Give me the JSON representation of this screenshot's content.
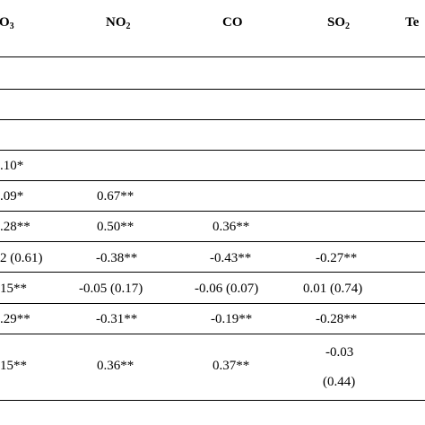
{
  "headers": {
    "o3": {
      "base": "O",
      "sub": "3"
    },
    "no2": {
      "base": "NO",
      "sub": "2"
    },
    "co": {
      "base": "CO"
    },
    "so2": {
      "base": "SO",
      "sub": "2"
    },
    "te": {
      "base": "Te"
    }
  },
  "rows": [
    {
      "o3": "",
      "no2": "",
      "co": "",
      "so2": ""
    },
    {
      "o3": "",
      "no2": "",
      "co": "",
      "so2": ""
    },
    {
      "o3": "",
      "no2": "",
      "co": "",
      "so2": ""
    },
    {
      "o3": ".10*",
      "no2": "",
      "co": "",
      "so2": ""
    },
    {
      "o3": ".09*",
      "no2": "0.67**",
      "co": "",
      "so2": ""
    },
    {
      "o3": ".28**",
      "no2": "0.50**",
      "co": "0.36**",
      "so2": ""
    },
    {
      "o3": "2 (0.61)",
      "no2": "-0.38**",
      "co": "-0.43**",
      "so2": "-0.27**"
    },
    {
      "o3": "15**",
      "no2": "-0.05 (0.17)",
      "co": "-0.06 (0.07)",
      "so2": "0.01 (0.74)"
    },
    {
      "o3": ".29**",
      "no2": "-0.31**",
      "co": "-0.19**",
      "so2": "-0.28**"
    },
    {
      "o3": "15**",
      "no2": "0.36**",
      "co": "0.37**",
      "so2_line1": "-0.03",
      "so2_line2": "(0.44)"
    }
  ]
}
